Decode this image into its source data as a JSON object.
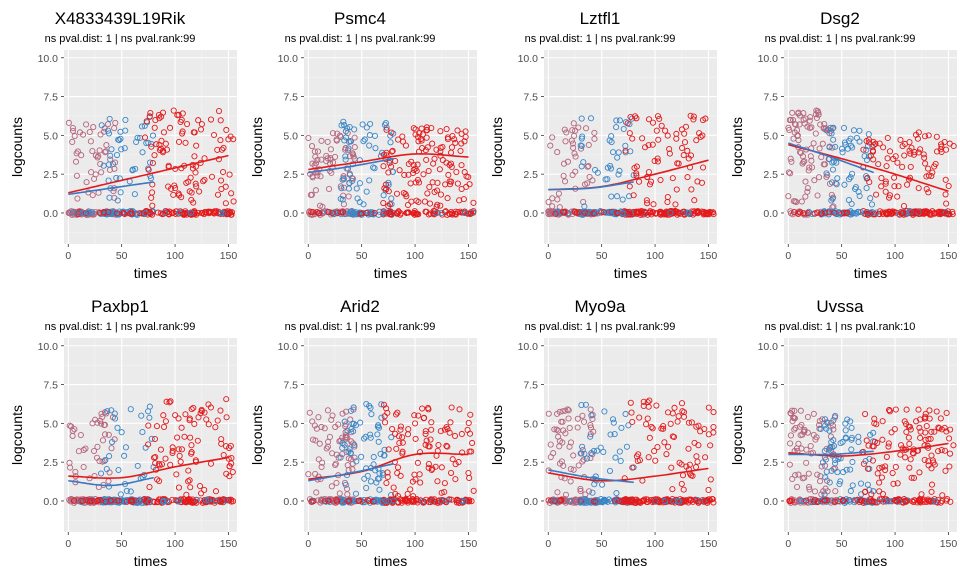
{
  "figure": {
    "layout": "2x4 grid of scatter panels"
  },
  "colors": {
    "panel_bg": "#ebebeb",
    "grid_major": "#ffffff",
    "grid_minor": "#f4f4f4",
    "groupA": "#b5657c",
    "groupB": "#3a86c7",
    "groupC": "#e31a1c",
    "fitA": "#e31a1c",
    "fitB": "#3a78c3",
    "tick_text": "#4d4d4d",
    "axis_text": "#000000"
  },
  "chart_data": [
    {
      "type": "scatter",
      "title": "X4833439L19Rik",
      "subtitle": "ns pval.dist: 1 | ns pval.rank:99",
      "xlabel": "times",
      "ylabel": "logcounts",
      "xlim": [
        -4,
        158
      ],
      "ylim": [
        -2,
        10.5
      ],
      "xticks": [
        "0",
        "50",
        "100",
        "150"
      ],
      "yticks": [
        "0.0",
        "2.5",
        "5.0",
        "7.5",
        "10.0"
      ],
      "profile": {
        "A": [
          0.55,
          0.8
        ],
        "B": [
          0.5,
          0.85
        ],
        "C": [
          0.4,
          0.9
        ]
      },
      "fit_lines": [
        {
          "name": "fitA",
          "x": [
            0,
            50,
            100,
            150
          ],
          "y": [
            1.3,
            2.1,
            2.9,
            3.7
          ]
        },
        {
          "name": "fitB",
          "x": [
            0,
            40,
            80
          ],
          "y": [
            1.2,
            1.6,
            2.0
          ]
        }
      ]
    },
    {
      "type": "scatter",
      "title": "Psmc4",
      "subtitle": "ns pval.dist: 1 | ns pval.rank:99",
      "xlabel": "times",
      "ylabel": "logcounts",
      "xlim": [
        -4,
        158
      ],
      "ylim": [
        -2,
        10.5
      ],
      "xticks": [
        "0",
        "50",
        "100",
        "150"
      ],
      "yticks": [
        "0.0",
        "2.5",
        "5.0",
        "7.5",
        "10.0"
      ],
      "profile": {
        "A": [
          0.35,
          0.7
        ],
        "B": [
          0.3,
          0.8
        ],
        "C": [
          0.25,
          0.75
        ]
      },
      "fit_lines": [
        {
          "name": "fitA",
          "x": [
            0,
            50,
            100,
            150
          ],
          "y": [
            2.8,
            3.3,
            3.8,
            3.6
          ]
        },
        {
          "name": "fitB",
          "x": [
            0,
            40,
            80
          ],
          "y": [
            2.6,
            3.0,
            3.5
          ]
        }
      ]
    },
    {
      "type": "scatter",
      "title": "Lztfl1",
      "subtitle": "ns pval.dist: 1 | ns pval.rank:99",
      "xlabel": "times",
      "ylabel": "logcounts",
      "xlim": [
        -4,
        158
      ],
      "ylim": [
        -2,
        10.5
      ],
      "xticks": [
        "0",
        "50",
        "100",
        "150"
      ],
      "yticks": [
        "0.0",
        "2.5",
        "5.0",
        "7.5",
        "10.0"
      ],
      "profile": {
        "A": [
          0.6,
          0.8
        ],
        "B": [
          0.55,
          0.85
        ],
        "C": [
          0.5,
          0.9
        ]
      },
      "fit_lines": [
        {
          "name": "fitA",
          "x": [
            0,
            50,
            100,
            150
          ],
          "y": [
            1.5,
            1.7,
            2.5,
            3.4
          ]
        },
        {
          "name": "fitB",
          "x": [
            0,
            40,
            80
          ],
          "y": [
            1.5,
            1.6,
            2.0
          ]
        }
      ]
    },
    {
      "type": "scatter",
      "title": "Dsg2",
      "subtitle": "ns pval.dist: 1 | ns pval.rank:99",
      "xlabel": "times",
      "ylabel": "logcounts",
      "xlim": [
        -4,
        158
      ],
      "ylim": [
        -2,
        10.5
      ],
      "xticks": [
        "0",
        "50",
        "100",
        "150"
      ],
      "yticks": [
        "0.0",
        "2.5",
        "5.0",
        "7.5",
        "10.0"
      ],
      "profile": {
        "A": [
          0.2,
          0.9
        ],
        "B": [
          0.4,
          0.75
        ],
        "C": [
          0.6,
          0.7
        ]
      },
      "fit_lines": [
        {
          "name": "fitA",
          "x": [
            0,
            50,
            100,
            150
          ],
          "y": [
            4.4,
            3.5,
            2.5,
            1.4
          ]
        },
        {
          "name": "fitB",
          "x": [
            0,
            40,
            80
          ],
          "y": [
            4.5,
            3.6,
            2.6
          ]
        }
      ]
    },
    {
      "type": "scatter",
      "title": "Paxbp1",
      "subtitle": "ns pval.dist: 1 | ns pval.rank:99",
      "xlabel": "times",
      "ylabel": "logcounts",
      "xlim": [
        -4,
        158
      ],
      "ylim": [
        -2,
        10.5
      ],
      "xticks": [
        "0",
        "50",
        "100",
        "150"
      ],
      "yticks": [
        "0.0",
        "2.5",
        "5.0",
        "7.5",
        "10.0"
      ],
      "profile": {
        "A": [
          0.55,
          0.8
        ],
        "B": [
          0.6,
          0.85
        ],
        "C": [
          0.45,
          0.9
        ]
      },
      "fit_lines": [
        {
          "name": "fitA",
          "x": [
            0,
            50,
            100,
            150
          ],
          "y": [
            1.6,
            1.5,
            2.2,
            2.8
          ]
        },
        {
          "name": "fitB",
          "x": [
            0,
            40,
            80
          ],
          "y": [
            1.3,
            1.0,
            1.5
          ]
        }
      ]
    },
    {
      "type": "scatter",
      "title": "Arid2",
      "subtitle": "ns pval.dist: 1 | ns pval.rank:99",
      "xlabel": "times",
      "ylabel": "logcounts",
      "xlim": [
        -4,
        158
      ],
      "ylim": [
        -2,
        10.5
      ],
      "xticks": [
        "0",
        "50",
        "100",
        "150"
      ],
      "yticks": [
        "0.0",
        "2.5",
        "5.0",
        "7.5",
        "10.0"
      ],
      "profile": {
        "A": [
          0.4,
          0.8
        ],
        "B": [
          0.45,
          0.85
        ],
        "C": [
          0.35,
          0.85
        ]
      },
      "fit_lines": [
        {
          "name": "fitA",
          "x": [
            0,
            50,
            100,
            150
          ],
          "y": [
            1.4,
            1.9,
            3.0,
            3.0
          ]
        },
        {
          "name": "fitB",
          "x": [
            0,
            40,
            80
          ],
          "y": [
            1.3,
            1.8,
            2.4
          ]
        }
      ]
    },
    {
      "type": "scatter",
      "title": "Myo9a",
      "subtitle": "ns pval.dist: 1 | ns pval.rank:99",
      "xlabel": "times",
      "ylabel": "logcounts",
      "xlim": [
        -4,
        158
      ],
      "ylim": [
        -2,
        10.5
      ],
      "xticks": [
        "0",
        "50",
        "100",
        "150"
      ],
      "yticks": [
        "0.0",
        "2.5",
        "5.0",
        "7.5",
        "10.0"
      ],
      "profile": {
        "A": [
          0.5,
          0.8
        ],
        "B": [
          0.6,
          0.85
        ],
        "C": [
          0.55,
          0.9
        ]
      },
      "fit_lines": [
        {
          "name": "fitA",
          "x": [
            0,
            50,
            100,
            150
          ],
          "y": [
            1.8,
            1.3,
            1.6,
            2.1
          ]
        },
        {
          "name": "fitB",
          "x": [
            0,
            40,
            80
          ],
          "y": [
            2.0,
            1.5,
            1.2
          ]
        }
      ]
    },
    {
      "type": "scatter",
      "title": "Uvssa",
      "subtitle": "ns pval.dist: 1 | ns pval.rank:10",
      "xlabel": "times",
      "ylabel": "logcounts",
      "xlim": [
        -4,
        158
      ],
      "ylim": [
        -2,
        10.5
      ],
      "xticks": [
        "0",
        "50",
        "100",
        "150"
      ],
      "yticks": [
        "0.0",
        "2.5",
        "5.0",
        "7.5",
        "10.0"
      ],
      "profile": {
        "A": [
          0.3,
          0.8
        ],
        "B": [
          0.35,
          0.75
        ],
        "C": [
          0.3,
          0.8
        ]
      },
      "fit_lines": [
        {
          "name": "fitA",
          "x": [
            0,
            50,
            100,
            150
          ],
          "y": [
            3.1,
            2.9,
            3.2,
            3.7
          ]
        },
        {
          "name": "fitB",
          "x": [
            0,
            40,
            80
          ],
          "y": [
            3.0,
            3.0,
            3.2
          ]
        }
      ]
    }
  ]
}
